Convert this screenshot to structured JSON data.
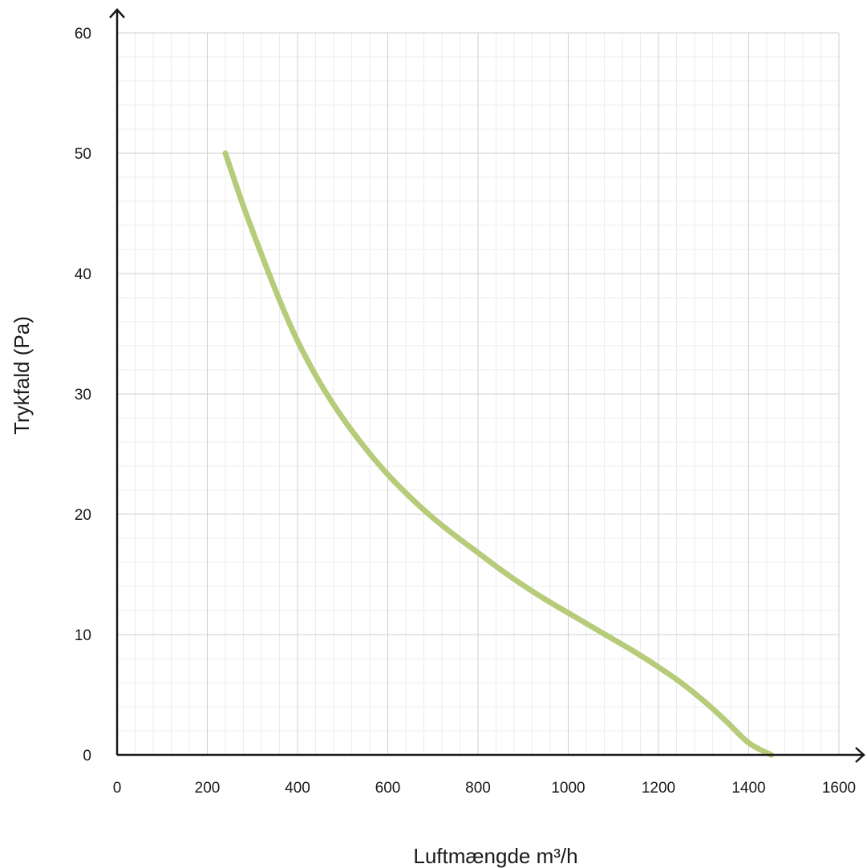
{
  "chart_data": {
    "type": "line",
    "title": "",
    "xlabel": "Luftmængde m³/h",
    "ylabel": "Trykfald (Pa)",
    "xlim": [
      0,
      1600
    ],
    "ylim": [
      0,
      60
    ],
    "x_ticks": [
      "0",
      "200",
      "400",
      "600",
      "800",
      "1000",
      "1200",
      "1400",
      "1600"
    ],
    "y_ticks": [
      "0",
      "10",
      "20",
      "30",
      "40",
      "50",
      "60"
    ],
    "grid": true,
    "minor_grid": true,
    "series": [
      {
        "color": "#b7cc7a",
        "x": [
          240,
          280,
          320,
          360,
          400,
          450,
          500,
          550,
          600,
          650,
          700,
          750,
          800,
          850,
          900,
          950,
          1000,
          1050,
          1100,
          1150,
          1200,
          1250,
          1300,
          1350,
          1400,
          1450,
          1500,
          1550,
          1575
        ],
        "y": [
          50,
          45.6,
          41.6,
          37.8,
          34.4,
          30.9,
          28.0,
          25.5,
          23.3,
          21.4,
          19.7,
          18.2,
          16.8,
          15.4,
          14.1,
          12.9,
          11.8,
          10.7,
          9.6,
          8.5,
          7.3,
          6.0,
          4.5,
          2.8,
          1.0,
          0,
          0,
          0,
          0
        ]
      }
    ],
    "colors": {
      "axis": "#1a1a1a",
      "major_grid": "#cfcfcf",
      "minor_grid": "#ececec",
      "line": "#b7cc7a"
    }
  }
}
